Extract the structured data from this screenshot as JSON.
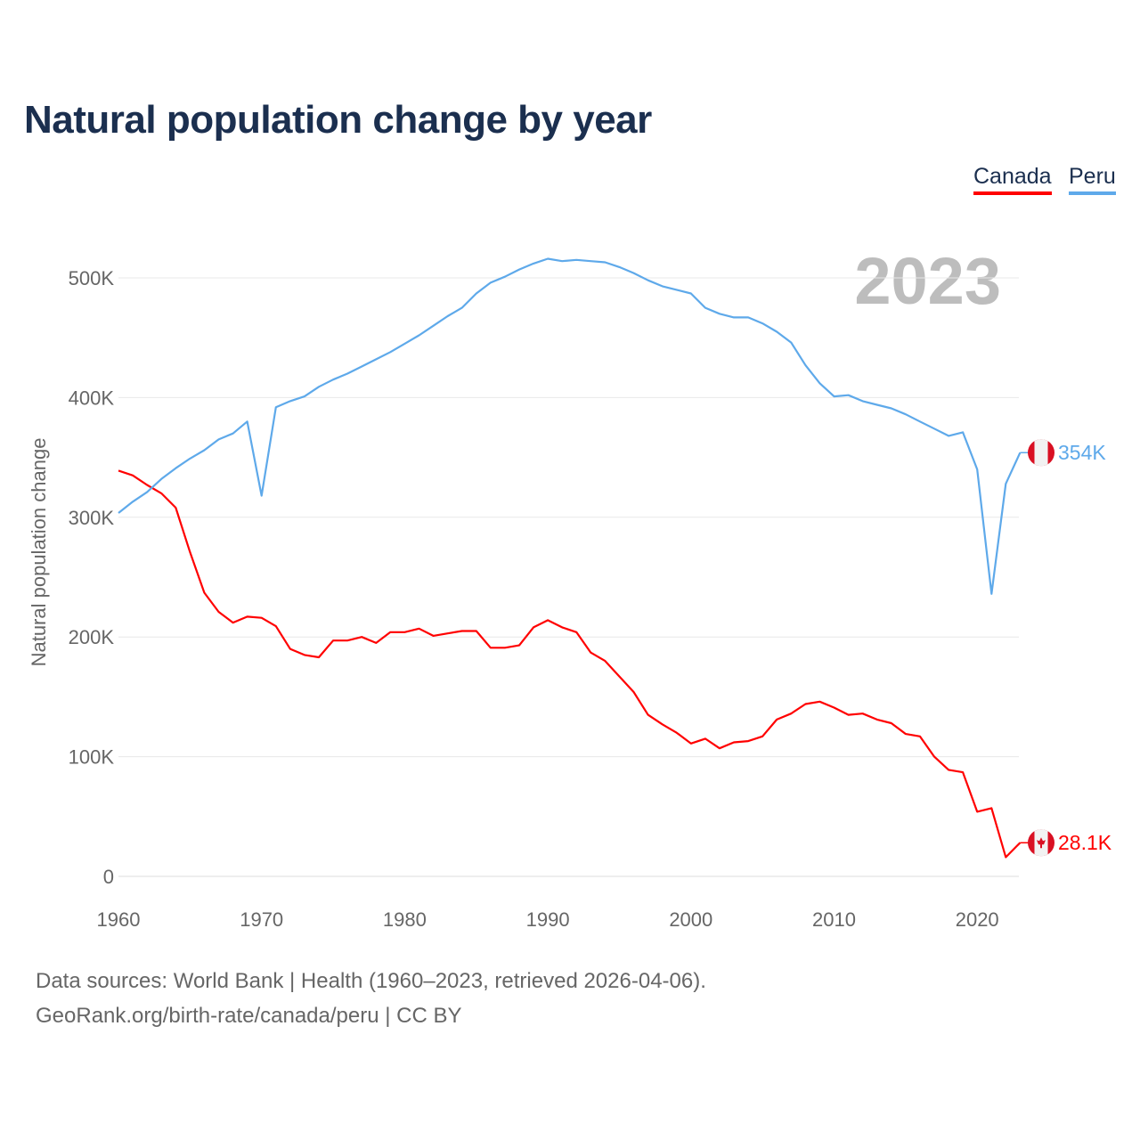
{
  "chart_data": {
    "type": "line",
    "title": "Natural population change by year",
    "xlabel": "",
    "ylabel": "Natural population change",
    "xlim": [
      1960,
      2023
    ],
    "ylim": [
      0,
      520000
    ],
    "x_ticks": [
      "1960",
      "1970",
      "1980",
      "1990",
      "2000",
      "2010",
      "2020"
    ],
    "y_ticks": [
      {
        "v": 0,
        "label": "0"
      },
      {
        "v": 100000,
        "label": "100K"
      },
      {
        "v": 200000,
        "label": "200K"
      },
      {
        "v": 300000,
        "label": "300K"
      },
      {
        "v": 400000,
        "label": "400K"
      },
      {
        "v": 500000,
        "label": "500K"
      }
    ],
    "grid": true,
    "legend_placement": "top-right",
    "year_watermark": "2023",
    "x": [
      1960,
      1961,
      1962,
      1963,
      1964,
      1965,
      1966,
      1967,
      1968,
      1969,
      1970,
      1971,
      1972,
      1973,
      1974,
      1975,
      1976,
      1977,
      1978,
      1979,
      1980,
      1981,
      1982,
      1983,
      1984,
      1985,
      1986,
      1987,
      1988,
      1989,
      1990,
      1991,
      1992,
      1993,
      1994,
      1995,
      1996,
      1997,
      1998,
      1999,
      2000,
      2001,
      2002,
      2003,
      2004,
      2005,
      2006,
      2007,
      2008,
      2009,
      2010,
      2011,
      2012,
      2013,
      2014,
      2015,
      2016,
      2017,
      2018,
      2019,
      2020,
      2021,
      2022,
      2023
    ],
    "series": [
      {
        "name": "Canada",
        "color": "#ff0000",
        "end_label": "28.1K",
        "flag": "canada-flag",
        "values": [
          339000,
          335000,
          327000,
          320000,
          308000,
          271000,
          237000,
          221000,
          212000,
          217000,
          216000,
          209000,
          190000,
          185000,
          183000,
          197000,
          197000,
          200000,
          195000,
          204000,
          204000,
          207000,
          201000,
          203000,
          205000,
          205000,
          191000,
          191000,
          193000,
          208000,
          214000,
          208000,
          204000,
          187000,
          180000,
          167000,
          154000,
          135000,
          127000,
          120000,
          111000,
          115000,
          107000,
          112000,
          113000,
          117000,
          131000,
          136000,
          144000,
          146000,
          141000,
          135000,
          136000,
          131000,
          128000,
          119000,
          117000,
          100000,
          89000,
          87000,
          54000,
          57000,
          16000,
          28100
        ]
      },
      {
        "name": "Peru",
        "color": "#5ea9ea",
        "end_label": "354K",
        "flag": "peru-flag",
        "values": [
          303600,
          313000,
          321000,
          332000,
          341000,
          349000,
          356000,
          365000,
          370000,
          380000,
          318000,
          392000,
          397000,
          401000,
          409000,
          415000,
          420000,
          426000,
          432000,
          438000,
          445000,
          452000,
          460000,
          468000,
          475000,
          487000,
          496000,
          501000,
          507000,
          512000,
          516000,
          514000,
          515000,
          514000,
          513000,
          509000,
          504000,
          498000,
          493000,
          490000,
          487000,
          475000,
          470000,
          467000,
          467000,
          462000,
          455000,
          446000,
          427000,
          412000,
          401000,
          402000,
          397000,
          394000,
          391000,
          386000,
          380000,
          374000,
          368000,
          371000,
          340000,
          236000,
          328000,
          354000
        ]
      }
    ]
  },
  "footer": {
    "line1": "Data sources: World Bank | Health (1960–2023, retrieved 2026-04-06).",
    "line2": "GeoRank.org/birth-rate/canada/peru | CC BY"
  }
}
